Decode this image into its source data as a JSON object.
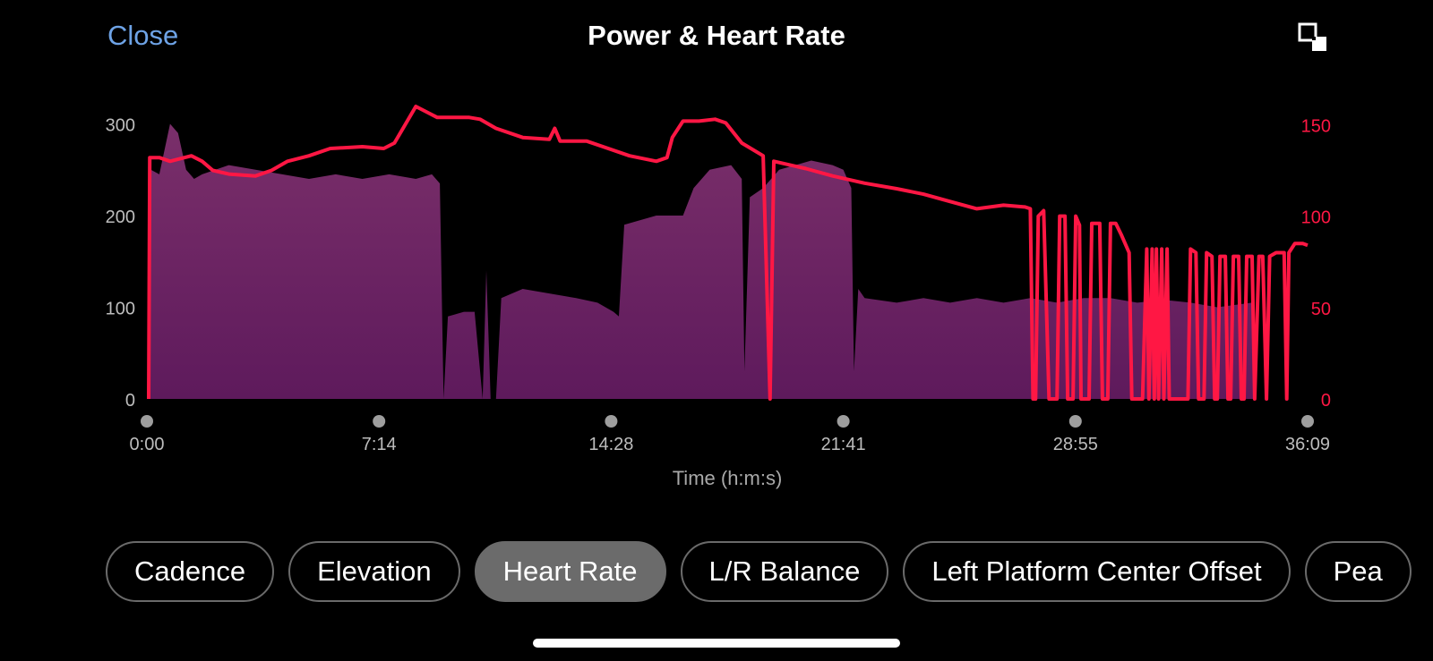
{
  "header": {
    "close_label": "Close",
    "title": "Power & Heart Rate",
    "expand_icon": "expand-icon"
  },
  "colors": {
    "power_fill_top": "#7a2f6a",
    "power_fill_bottom": "#5e1a5c",
    "heart_rate_line": "#ff1744",
    "accent_blue": "#6ea3e6"
  },
  "chart_data": {
    "type": "area",
    "xlabel": "Time (h:m:s)",
    "x_ticks": [
      "0:00",
      "7:14",
      "14:28",
      "21:41",
      "28:55",
      "36:09"
    ],
    "x_range_seconds": [
      0,
      2169
    ],
    "left_axis": {
      "ticks": [
        "300",
        "200",
        "100",
        "0"
      ],
      "range": [
        0,
        360
      ]
    },
    "right_axis": {
      "ticks": [
        "150",
        "100",
        "50",
        "0"
      ],
      "range": [
        0,
        160
      ]
    },
    "series": [
      {
        "axis": "left",
        "style": "area",
        "points": [
          [
            0,
            0
          ],
          [
            4,
            250
          ],
          [
            20,
            245
          ],
          [
            40,
            300
          ],
          [
            55,
            290
          ],
          [
            70,
            250
          ],
          [
            85,
            240
          ],
          [
            100,
            245
          ],
          [
            150,
            255
          ],
          [
            200,
            250
          ],
          [
            250,
            245
          ],
          [
            300,
            240
          ],
          [
            350,
            245
          ],
          [
            400,
            240
          ],
          [
            450,
            245
          ],
          [
            500,
            240
          ],
          [
            530,
            245
          ],
          [
            545,
            235
          ],
          [
            552,
            0
          ],
          [
            560,
            90
          ],
          [
            590,
            95
          ],
          [
            610,
            95
          ],
          [
            625,
            0
          ],
          [
            632,
            140
          ],
          [
            640,
            0
          ],
          [
            650,
            0
          ],
          [
            660,
            110
          ],
          [
            700,
            120
          ],
          [
            750,
            115
          ],
          [
            800,
            110
          ],
          [
            840,
            105
          ],
          [
            870,
            95
          ],
          [
            880,
            90
          ],
          [
            890,
            190
          ],
          [
            950,
            200
          ],
          [
            1000,
            200
          ],
          [
            1020,
            230
          ],
          [
            1050,
            250
          ],
          [
            1090,
            255
          ],
          [
            1110,
            240
          ],
          [
            1115,
            30
          ],
          [
            1125,
            220
          ],
          [
            1150,
            230
          ],
          [
            1180,
            250
          ],
          [
            1240,
            260
          ],
          [
            1280,
            255
          ],
          [
            1300,
            250
          ],
          [
            1315,
            230
          ],
          [
            1320,
            30
          ],
          [
            1328,
            120
          ],
          [
            1340,
            110
          ],
          [
            1400,
            105
          ],
          [
            1450,
            110
          ],
          [
            1500,
            105
          ],
          [
            1550,
            110
          ],
          [
            1600,
            105
          ],
          [
            1650,
            110
          ],
          [
            1700,
            105
          ],
          [
            1750,
            110
          ],
          [
            1800,
            110
          ],
          [
            1850,
            105
          ],
          [
            1900,
            108
          ],
          [
            1950,
            105
          ],
          [
            2000,
            100
          ],
          [
            2065,
            105
          ],
          [
            2070,
            0
          ]
        ]
      },
      {
        "axis": "right",
        "style": "line",
        "points": [
          [
            0,
            0
          ],
          [
            2,
            132
          ],
          [
            20,
            132
          ],
          [
            40,
            130
          ],
          [
            80,
            133
          ],
          [
            100,
            130
          ],
          [
            120,
            125
          ],
          [
            150,
            123
          ],
          [
            200,
            122
          ],
          [
            230,
            125
          ],
          [
            260,
            130
          ],
          [
            300,
            133
          ],
          [
            340,
            137
          ],
          [
            400,
            138
          ],
          [
            440,
            137
          ],
          [
            460,
            140
          ],
          [
            480,
            150
          ],
          [
            500,
            160
          ],
          [
            520,
            157
          ],
          [
            540,
            154
          ],
          [
            600,
            154
          ],
          [
            620,
            153
          ],
          [
            650,
            148
          ],
          [
            700,
            143
          ],
          [
            750,
            142
          ],
          [
            760,
            148
          ],
          [
            770,
            141
          ],
          [
            820,
            141
          ],
          [
            860,
            137
          ],
          [
            900,
            133
          ],
          [
            950,
            130
          ],
          [
            970,
            132
          ],
          [
            980,
            143
          ],
          [
            1000,
            152
          ],
          [
            1030,
            152
          ],
          [
            1060,
            153
          ],
          [
            1080,
            151
          ],
          [
            1110,
            140
          ],
          [
            1150,
            133
          ],
          [
            1163,
            0
          ],
          [
            1170,
            130
          ],
          [
            1200,
            128
          ],
          [
            1230,
            126
          ],
          [
            1280,
            122
          ],
          [
            1340,
            118
          ],
          [
            1400,
            115
          ],
          [
            1450,
            112
          ],
          [
            1500,
            108
          ],
          [
            1550,
            104
          ],
          [
            1600,
            106
          ],
          [
            1640,
            105
          ],
          [
            1650,
            104
          ],
          [
            1655,
            0
          ],
          [
            1660,
            0
          ],
          [
            1665,
            100
          ],
          [
            1675,
            103
          ],
          [
            1685,
            0
          ],
          [
            1695,
            0
          ],
          [
            1700,
            0
          ],
          [
            1705,
            100
          ],
          [
            1715,
            100
          ],
          [
            1720,
            0
          ],
          [
            1730,
            0
          ],
          [
            1735,
            100
          ],
          [
            1742,
            95
          ],
          [
            1745,
            0
          ],
          [
            1760,
            0
          ],
          [
            1765,
            96
          ],
          [
            1780,
            96
          ],
          [
            1785,
            0
          ],
          [
            1795,
            0
          ],
          [
            1800,
            96
          ],
          [
            1810,
            96
          ],
          [
            1820,
            90
          ],
          [
            1835,
            80
          ],
          [
            1840,
            0
          ],
          [
            1860,
            0
          ],
          [
            1868,
            82
          ],
          [
            1872,
            0
          ],
          [
            1878,
            82
          ],
          [
            1882,
            0
          ],
          [
            1886,
            82
          ],
          [
            1890,
            0
          ],
          [
            1896,
            82
          ],
          [
            1900,
            0
          ],
          [
            1906,
            82
          ],
          [
            1910,
            0
          ],
          [
            1945,
            0
          ],
          [
            1950,
            82
          ],
          [
            1960,
            80
          ],
          [
            1965,
            0
          ],
          [
            1975,
            0
          ],
          [
            1980,
            80
          ],
          [
            1990,
            78
          ],
          [
            1995,
            0
          ],
          [
            2000,
            0
          ],
          [
            2005,
            78
          ],
          [
            2015,
            78
          ],
          [
            2020,
            0
          ],
          [
            2025,
            0
          ],
          [
            2030,
            78
          ],
          [
            2040,
            78
          ],
          [
            2045,
            0
          ],
          [
            2050,
            0
          ],
          [
            2055,
            78
          ],
          [
            2065,
            78
          ],
          [
            2070,
            0
          ],
          [
            2078,
            78
          ],
          [
            2085,
            78
          ],
          [
            2092,
            0
          ],
          [
            2098,
            78
          ],
          [
            2110,
            80
          ],
          [
            2125,
            80
          ],
          [
            2130,
            0
          ],
          [
            2134,
            80
          ],
          [
            2145,
            85
          ],
          [
            2160,
            85
          ],
          [
            2169,
            84
          ]
        ]
      }
    ]
  },
  "tabs": [
    {
      "label": "Cadence",
      "active": false
    },
    {
      "label": "Elevation",
      "active": false
    },
    {
      "label": "Heart Rate",
      "active": true
    },
    {
      "label": "L/R Balance",
      "active": false
    },
    {
      "label": "Left Platform Center Offset",
      "active": false
    },
    {
      "label": "Pea",
      "active": false
    }
  ]
}
